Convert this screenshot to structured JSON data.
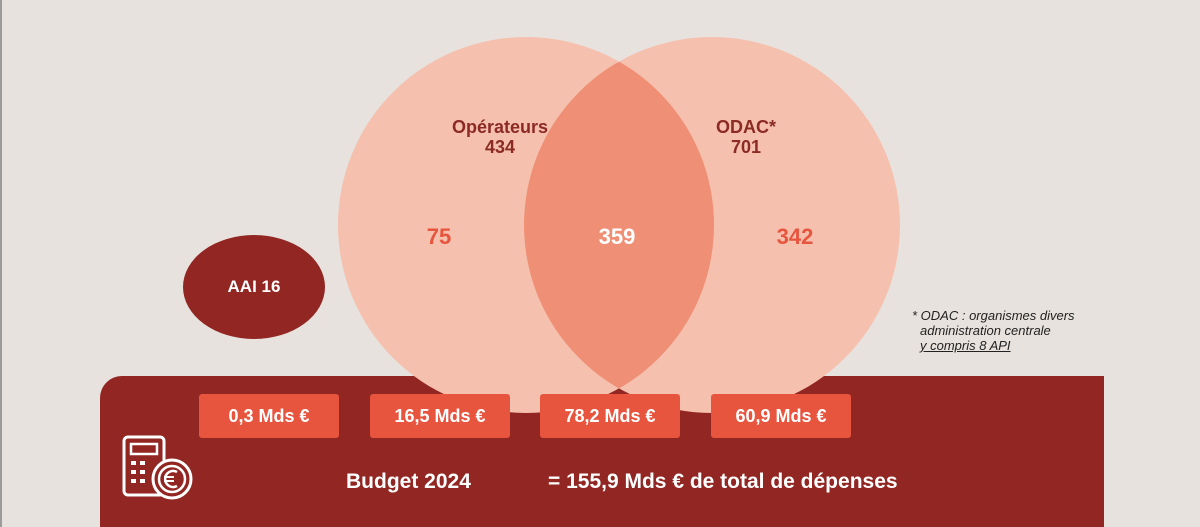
{
  "sets": {
    "operateurs": {
      "title": "Opérateurs",
      "total": "434",
      "only_count": "75"
    },
    "odac": {
      "title": "ODAC*",
      "total": "701",
      "only_count": "342"
    },
    "intersection_count": "359",
    "aai": {
      "label": "AAI 16"
    }
  },
  "amounts": [
    {
      "label": "0,3 Mds €"
    },
    {
      "label": "16,5 Mds €"
    },
    {
      "label": "78,2 Mds €"
    },
    {
      "label": "60,9 Mds €"
    }
  ],
  "footnote": {
    "line1": "* ODAC : organismes divers",
    "line2": "administration centrale",
    "line3": "y compris 8 API"
  },
  "budget": {
    "label": "Budget 2024",
    "total": "= 155,9 Mds € de total de dépenses"
  },
  "colors": {
    "background": "#e8e2de",
    "circle_fill": "#f5c0ae",
    "intersection_fill": "#ef8f75",
    "band": "#922622",
    "accent": "#e8553f",
    "dark_text": "#8c2a24"
  },
  "icons": {
    "budget": "calculator-euro-icon"
  }
}
